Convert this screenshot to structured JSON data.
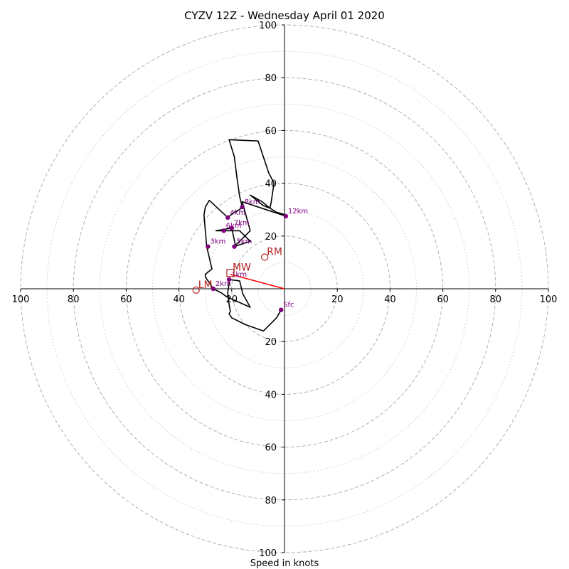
{
  "chart_data": {
    "type": "hodograph",
    "title": "CYZV 12Z - Wednesday April 01 2020",
    "xlabel": "Speed in knots",
    "xlim": [
      -100,
      100
    ],
    "ylim": [
      -100,
      100
    ],
    "rings_major": [
      20,
      40,
      60,
      80,
      100
    ],
    "rings_minor": [
      10,
      30,
      50,
      70,
      90
    ],
    "x_tick_labels": [
      "100",
      "80",
      "60",
      "40",
      "20",
      "20",
      "40",
      "60",
      "80",
      "100"
    ],
    "y_tick_labels": [
      "100",
      "80",
      "60",
      "40",
      "20",
      "20",
      "40",
      "60",
      "80",
      "100"
    ],
    "grid": true,
    "hodograph_trace": {
      "color": "#000000",
      "points": [
        [
          -1.3,
          -8.0
        ],
        [
          -3.0,
          -11.0
        ],
        [
          -8.0,
          -16.0
        ],
        [
          -15.0,
          -13.5
        ],
        [
          -17.0,
          -12.5
        ],
        [
          -20.0,
          -11.0
        ],
        [
          -21.0,
          -9.5
        ],
        [
          -20.5,
          -8.5
        ],
        [
          -21.0,
          -6.0
        ],
        [
          -21.5,
          -1.5
        ],
        [
          -21.0,
          2.0
        ],
        [
          -21.0,
          3.5
        ],
        [
          -17.0,
          3.0
        ],
        [
          -16.0,
          -1.0
        ],
        [
          -16.0,
          -1.5
        ],
        [
          -13.0,
          -7.0
        ],
        [
          -22.0,
          -3.0
        ],
        [
          -24.0,
          -1.5
        ],
        [
          -27.0,
          0.0
        ],
        [
          -30.0,
          4.5
        ],
        [
          -30.0,
          5.5
        ],
        [
          -27.5,
          7.5
        ],
        [
          -29.5,
          16.0
        ],
        [
          -30.0,
          22.0
        ],
        [
          -30.5,
          28.0
        ],
        [
          -30.0,
          31.0
        ],
        [
          -28.5,
          33.5
        ],
        [
          -21.5,
          27.0
        ],
        [
          -19.0,
          29.0
        ],
        [
          -17.0,
          30.0
        ],
        [
          -16.0,
          31.0
        ],
        [
          -17.0,
          35.0
        ],
        [
          -18.0,
          42.0
        ],
        [
          -19.0,
          50.0
        ],
        [
          -21.0,
          56.5
        ],
        [
          -10.0,
          56.0
        ],
        [
          -6.0,
          44.0
        ],
        [
          -4.0,
          40.0
        ],
        [
          -5.0,
          33.0
        ],
        [
          -5.5,
          30.5
        ],
        [
          -8.5,
          33.0
        ],
        [
          -13.0,
          35.5
        ],
        [
          -13.0,
          35.5
        ],
        [
          -8.0,
          31.5
        ],
        [
          -5.5,
          30.5
        ],
        [
          -3.0,
          29.0
        ],
        [
          0.5,
          28.0
        ],
        [
          0.5,
          27.5
        ],
        [
          -16.0,
          33.0
        ],
        [
          -13.0,
          22.0
        ],
        [
          -19.0,
          16.0
        ],
        [
          -18.5,
          16.0
        ],
        [
          -20.0,
          23.0
        ],
        [
          -26.0,
          22.0
        ],
        [
          -17.0,
          22.0
        ],
        [
          -13.0,
          18.0
        ],
        [
          -19.0,
          16.0
        ]
      ]
    },
    "height_markers": [
      {
        "label": "Sfc",
        "u": -1.3,
        "v": -8.0
      },
      {
        "label": "1km",
        "u": -21.0,
        "v": 3.5
      },
      {
        "label": "2km",
        "u": -27.0,
        "v": 0.0
      },
      {
        "label": "3km",
        "u": -29.0,
        "v": 16.0
      },
      {
        "label": "4km",
        "u": -21.5,
        "v": 27.0
      },
      {
        "label": "5km",
        "u": -19.0,
        "v": 16.0
      },
      {
        "label": "6km",
        "u": -23.0,
        "v": 22.0
      },
      {
        "label": "7km",
        "u": -20.0,
        "v": 23.0
      },
      {
        "label": "8km",
        "u": -16.0,
        "v": 31.0
      },
      {
        "label": "12km",
        "u": 0.5,
        "v": 27.5
      }
    ],
    "motion_markers": [
      {
        "label": "RM",
        "u": -7.5,
        "v": 12.0,
        "shape": "circle"
      },
      {
        "label": "LM",
        "u": -33.5,
        "v": -0.5,
        "shape": "circle"
      },
      {
        "label": "MW",
        "u": -20.5,
        "v": 6.0,
        "shape": "square"
      }
    ],
    "shear_vector": {
      "from": [
        0,
        0
      ],
      "to": [
        -20.5,
        5.5
      ],
      "color": "#ff0000"
    },
    "colors": {
      "trace": "#000000",
      "height_markers": "#800080",
      "motion_markers": "#b22222",
      "shear_vector": "#ff0000",
      "grid": "#b0b0b0"
    }
  }
}
